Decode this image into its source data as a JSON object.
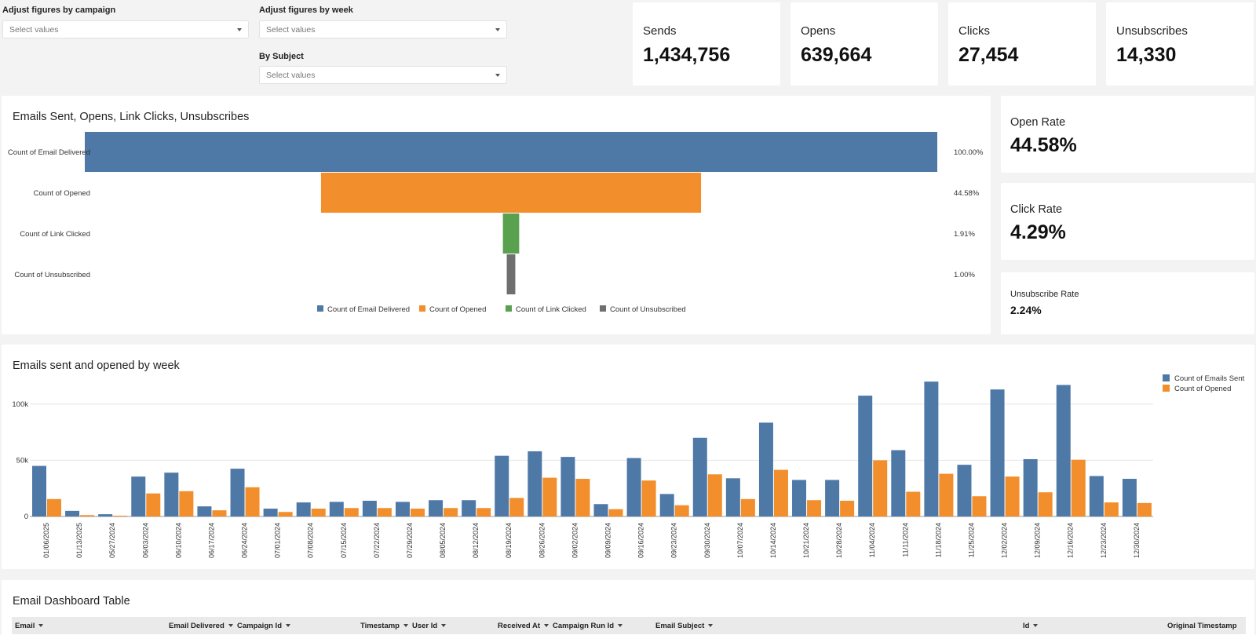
{
  "filters": {
    "campaign": {
      "label": "Adjust figures by campaign",
      "placeholder": "Select values"
    },
    "week": {
      "label": "Adjust figures by week",
      "placeholder": "Select values"
    },
    "subject": {
      "label": "By Subject",
      "placeholder": "Select values"
    }
  },
  "kpis": {
    "sends": {
      "label": "Sends",
      "value": "1,434,756"
    },
    "opens": {
      "label": "Opens",
      "value": "639,664"
    },
    "clicks": {
      "label": "Clicks",
      "value": "27,454"
    },
    "unsubscribes": {
      "label": "Unsubscribes",
      "value": "14,330"
    }
  },
  "rates": {
    "open": {
      "label": "Open Rate",
      "value": "44.58%"
    },
    "click": {
      "label": "Click Rate",
      "value": "4.29%"
    },
    "unsub": {
      "label": "Unsubscribe Rate",
      "value": "2.24%"
    }
  },
  "funnel_title": "Emails Sent, Opens, Link Clicks, Unsubscribes",
  "bar_title": "Emails sent and opened by week",
  "table": {
    "title": "Email Dashboard Table",
    "columns": [
      "Email",
      "Email Delivered",
      "Campaign Id",
      "Timestamp",
      "User Id",
      "Received At",
      "Campaign Run Id",
      "Email Subject",
      "Id",
      "Original Timestamp"
    ]
  },
  "chart_data": [
    {
      "type": "funnel",
      "title": "Emails Sent, Opens, Link Clicks, Unsubscribes",
      "categories": [
        "Count of Email Delivered",
        "Count of Opened",
        "Count of Link Clicked",
        "Count of Unsubscribed"
      ],
      "values": [
        100.0,
        44.58,
        1.91,
        1.0
      ],
      "value_labels": [
        "100.00%",
        "44.58%",
        "1.91%",
        "1.00%"
      ],
      "colors": [
        "#4e79a7",
        "#f28e2b",
        "#59a14f",
        "#6f6f6f"
      ],
      "legend": [
        "Count of Email Delivered",
        "Count of Opened",
        "Count of Link Clicked",
        "Count of Unsubscribed"
      ],
      "legend_position": "bottom"
    },
    {
      "type": "bar",
      "title": "Emails sent and opened by week",
      "categories": [
        "01/06/2025",
        "01/13/2025",
        "05/27/2024",
        "06/03/2024",
        "06/10/2024",
        "06/17/2024",
        "06/24/2024",
        "07/01/2024",
        "07/08/2024",
        "07/15/2024",
        "07/22/2024",
        "07/29/2024",
        "08/05/2024",
        "08/12/2024",
        "08/19/2024",
        "08/26/2024",
        "09/02/2024",
        "09/09/2024",
        "09/16/2024",
        "09/23/2024",
        "09/30/2024",
        "10/07/2024",
        "10/14/2024",
        "10/21/2024",
        "10/28/2024",
        "11/04/2024",
        "11/11/2024",
        "11/18/2024",
        "11/25/2024",
        "12/02/2024",
        "12/09/2024",
        "12/16/2024",
        "12/23/2024",
        "12/30/2024"
      ],
      "series": [
        {
          "name": "Count of Emails Sent",
          "color": "#4e79a7",
          "values": [
            45000,
            5000,
            2000,
            35500,
            39000,
            9000,
            42500,
            7000,
            12500,
            13000,
            14000,
            13000,
            14500,
            14500,
            54000,
            58000,
            53000,
            11000,
            52000,
            20000,
            70000,
            34000,
            83500,
            32500,
            32500,
            107500,
            59000,
            120000,
            46000,
            113000,
            51000,
            117000,
            36000,
            33500
          ]
        },
        {
          "name": "Count of Opened",
          "color": "#f28e2b",
          "values": [
            15500,
            1200,
            700,
            20500,
            22500,
            5500,
            26000,
            4000,
            7000,
            7500,
            7500,
            7000,
            7500,
            7500,
            16500,
            34500,
            33500,
            6500,
            32000,
            10000,
            37500,
            15500,
            41500,
            14500,
            14000,
            50000,
            22000,
            38000,
            18000,
            35500,
            21500,
            50500,
            12500,
            12000
          ]
        }
      ],
      "y_ticks": [
        0,
        50000,
        100000
      ],
      "y_tick_labels": [
        "0",
        "50k",
        "100k"
      ],
      "ylim": [
        0,
        125000
      ],
      "legend_position": "top-right"
    }
  ]
}
